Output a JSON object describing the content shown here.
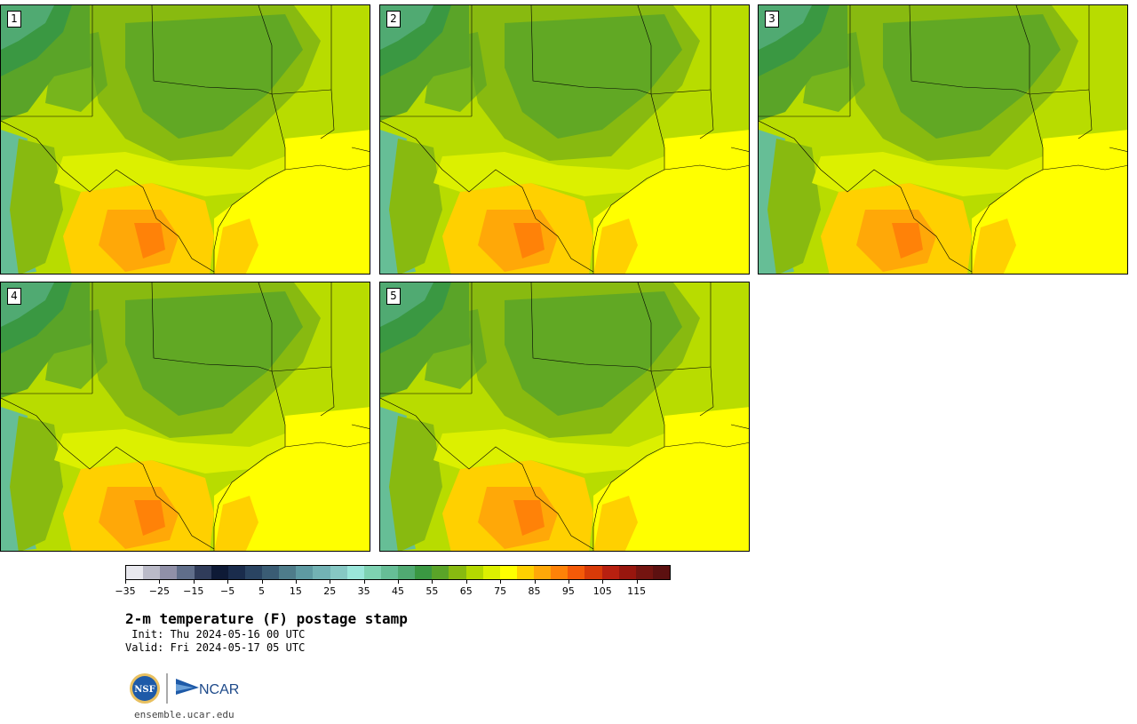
{
  "panels": [
    {
      "label": "1"
    },
    {
      "label": "2"
    },
    {
      "label": "3"
    },
    {
      "label": "4"
    },
    {
      "label": "5"
    }
  ],
  "colorbar": {
    "colors": [
      "#e8e8ee",
      "#babac8",
      "#9090a8",
      "#606e8a",
      "#303c5a",
      "#0e1a36",
      "#1a2c4c",
      "#2a4462",
      "#3a5c74",
      "#4e7c8a",
      "#5e9aa2",
      "#72b2b4",
      "#86c8c4",
      "#9ae6da",
      "#7ed2b2",
      "#66be96",
      "#50aa72",
      "#3a9842",
      "#5aa428",
      "#88ba10",
      "#b4d800",
      "#dcf000",
      "#ffff00",
      "#ffd000",
      "#ffa808",
      "#ff8208",
      "#f45a08",
      "#d83a08",
      "#b82010",
      "#98160e",
      "#741410",
      "#5c1010"
    ],
    "tick_labels": [
      "−35",
      "−25",
      "−15",
      "−5",
      "5",
      "15",
      "25",
      "35",
      "45",
      "55",
      "65",
      "75",
      "85",
      "95",
      "105",
      "115"
    ]
  },
  "title": "2-m temperature (F) postage stamp",
  "init": " Init: Thu 2024-05-16 00 UTC",
  "valid": "Valid: Fri 2024-05-17 05 UTC",
  "logo_nsf": "NSF",
  "logo_ncar": "NCAR",
  "site": "ensemble.ucar.edu"
}
